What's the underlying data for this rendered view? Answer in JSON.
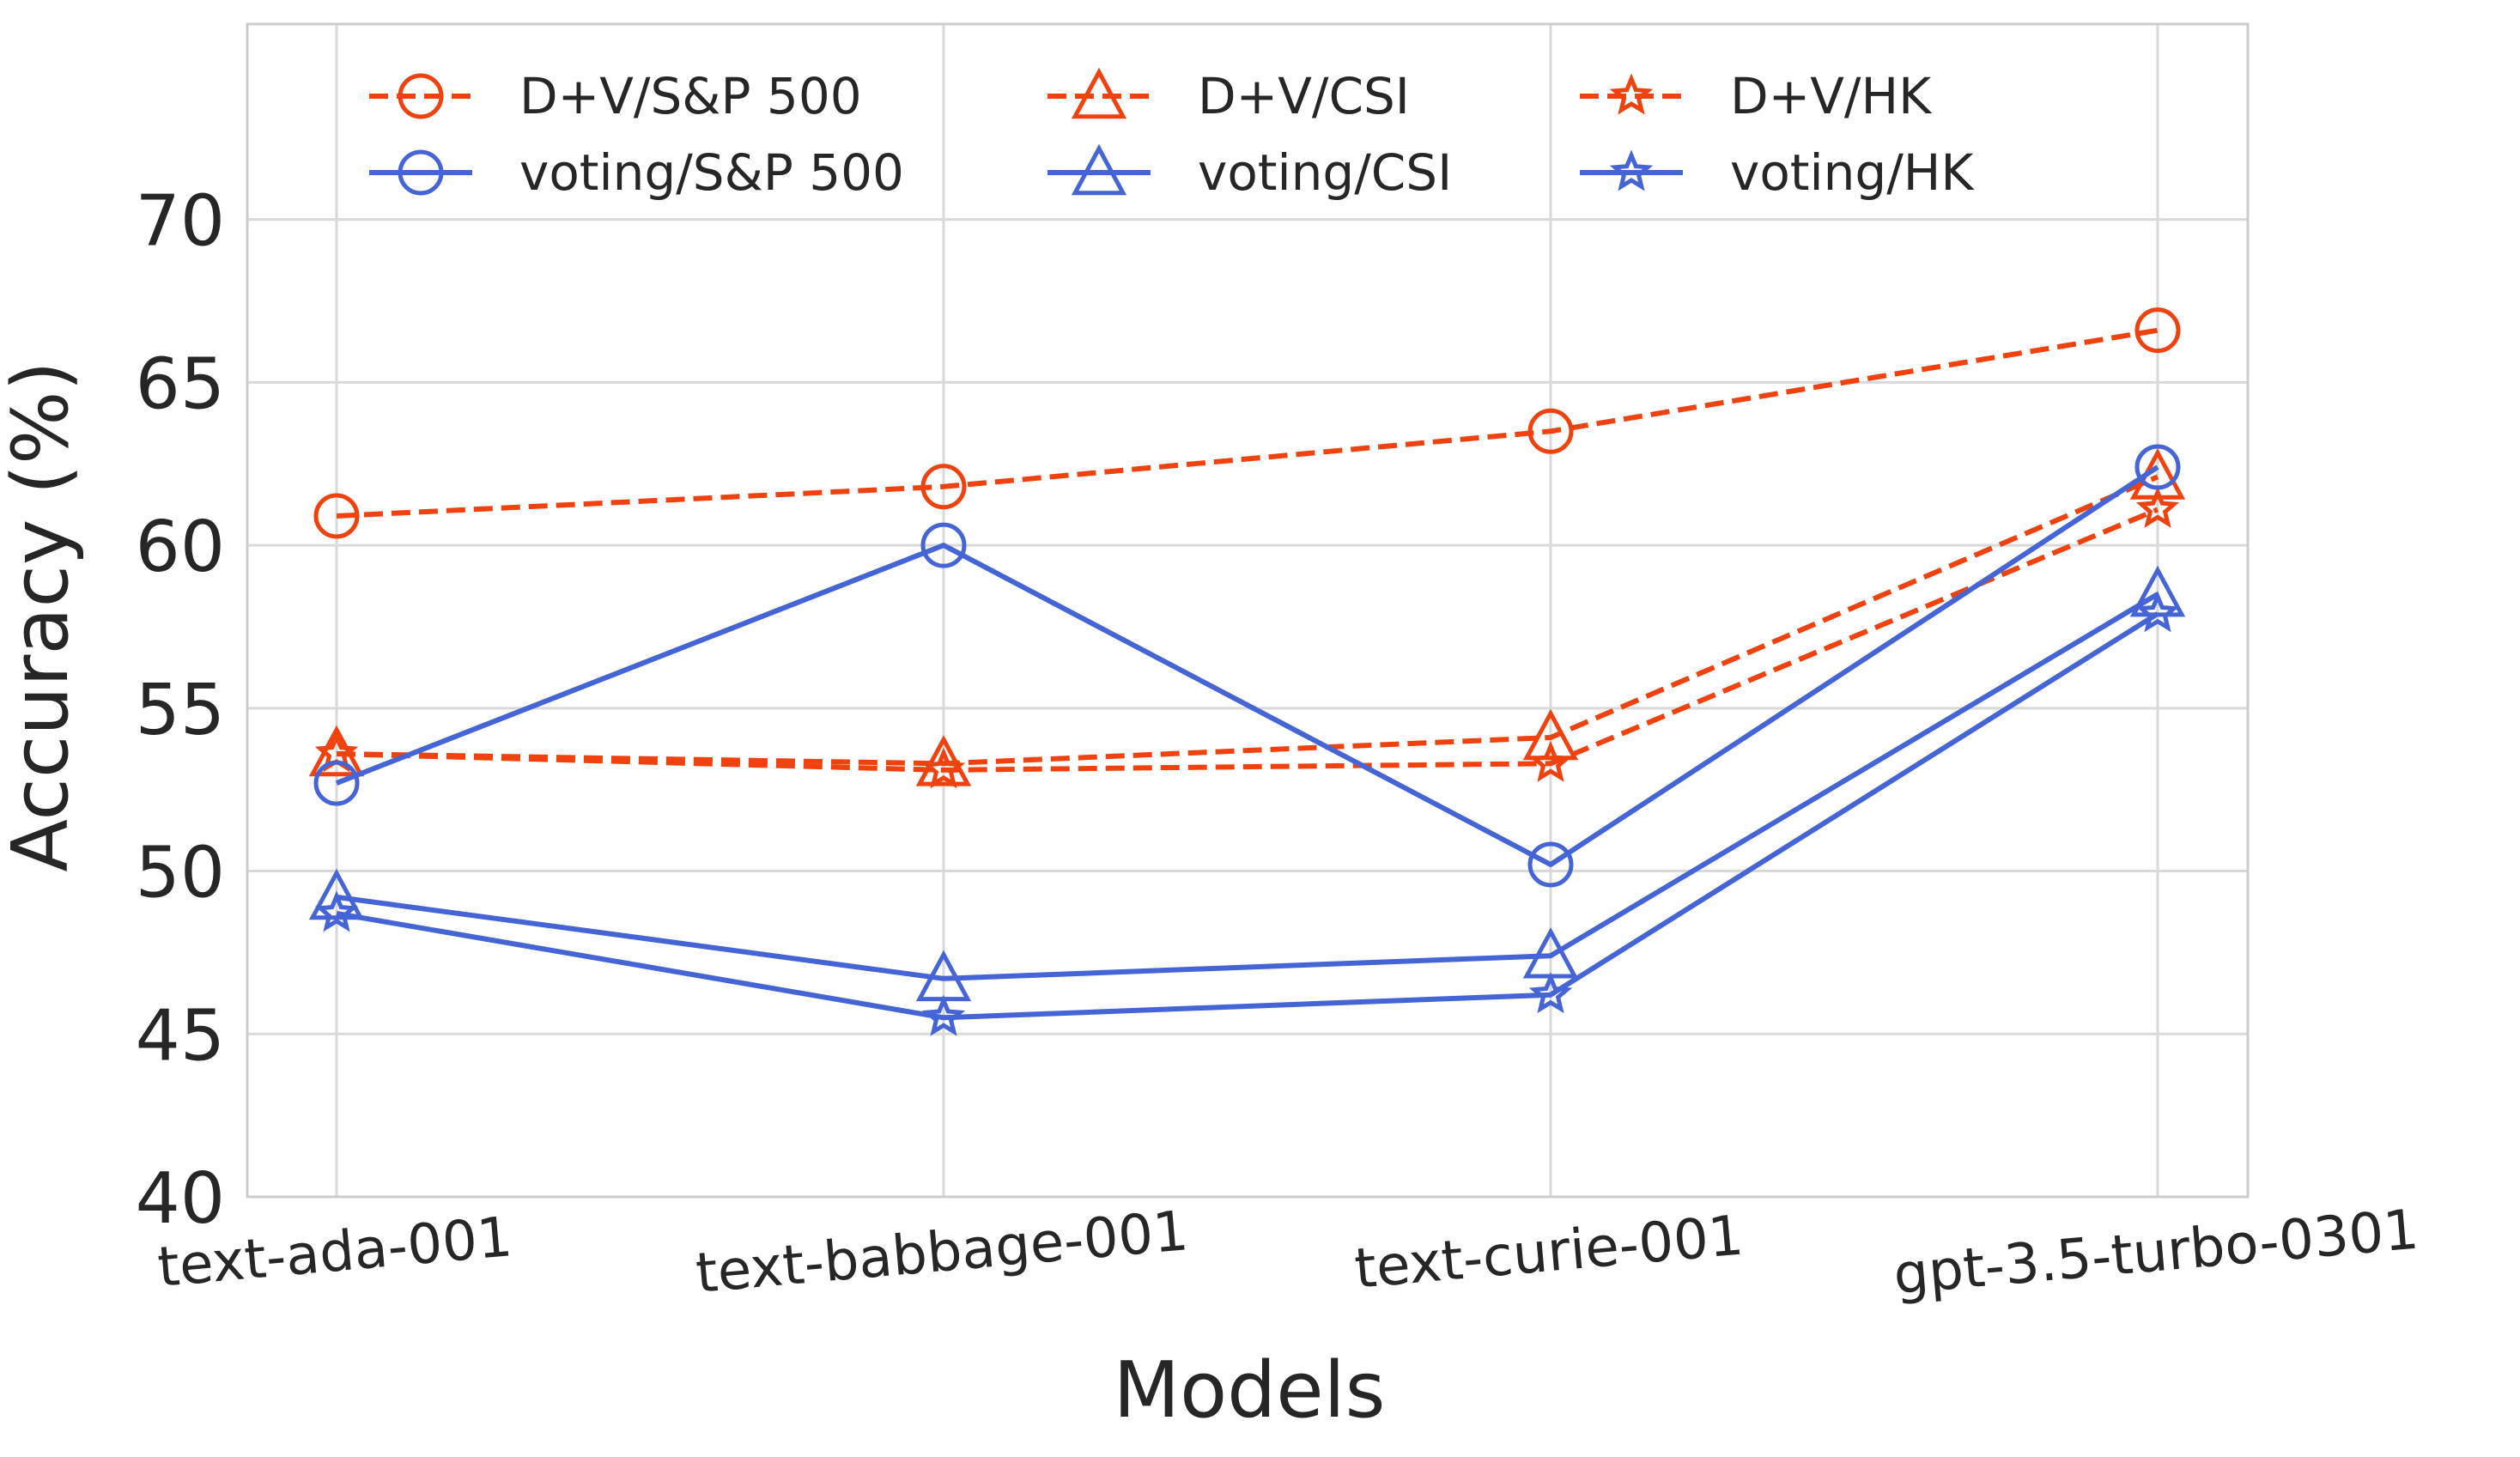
{
  "chart_data": {
    "type": "line",
    "title": "",
    "xlabel": "Models",
    "ylabel": "Accuracy (%)",
    "categories": [
      "text-ada-001",
      "text-babbage-001",
      "text-curie-001",
      "gpt-3.5-turbo-0301"
    ],
    "ylim": [
      40,
      76
    ],
    "yticks": [
      40,
      45,
      50,
      55,
      60,
      65,
      70
    ],
    "grid": true,
    "legend_position": "top",
    "colors": {
      "dv": "#f0420e",
      "voting": "#4565d6",
      "frame": "#cccccc",
      "grid": "#d9d9d9"
    },
    "series": [
      {
        "name": "D+V/S&P 500",
        "values": [
          60.9,
          61.8,
          63.5,
          66.6
        ],
        "color": "#f0420e",
        "dash": true,
        "marker": "circle"
      },
      {
        "name": "D+V/CSI",
        "values": [
          53.6,
          53.3,
          54.1,
          62.1
        ],
        "color": "#f0420e",
        "dash": true,
        "marker": "triangle"
      },
      {
        "name": "D+V/HK",
        "values": [
          53.6,
          53.1,
          53.3,
          61.1
        ],
        "color": "#f0420e",
        "dash": true,
        "marker": "star"
      },
      {
        "name": "voting/S&P 500",
        "values": [
          52.7,
          60.0,
          50.2,
          62.4
        ],
        "color": "#4565d6",
        "dash": false,
        "marker": "circle"
      },
      {
        "name": "voting/CSI",
        "values": [
          49.2,
          46.7,
          47.4,
          58.5
        ],
        "color": "#4565d6",
        "dash": false,
        "marker": "triangle"
      },
      {
        "name": "voting/HK",
        "values": [
          48.7,
          45.5,
          46.2,
          57.9
        ],
        "color": "#4565d6",
        "dash": false,
        "marker": "star"
      }
    ],
    "legend_order": [
      "D+V/S&P 500",
      "voting/S&P 500",
      "D+V/CSI",
      "voting/CSI",
      "D+V/HK",
      "voting/HK"
    ]
  }
}
